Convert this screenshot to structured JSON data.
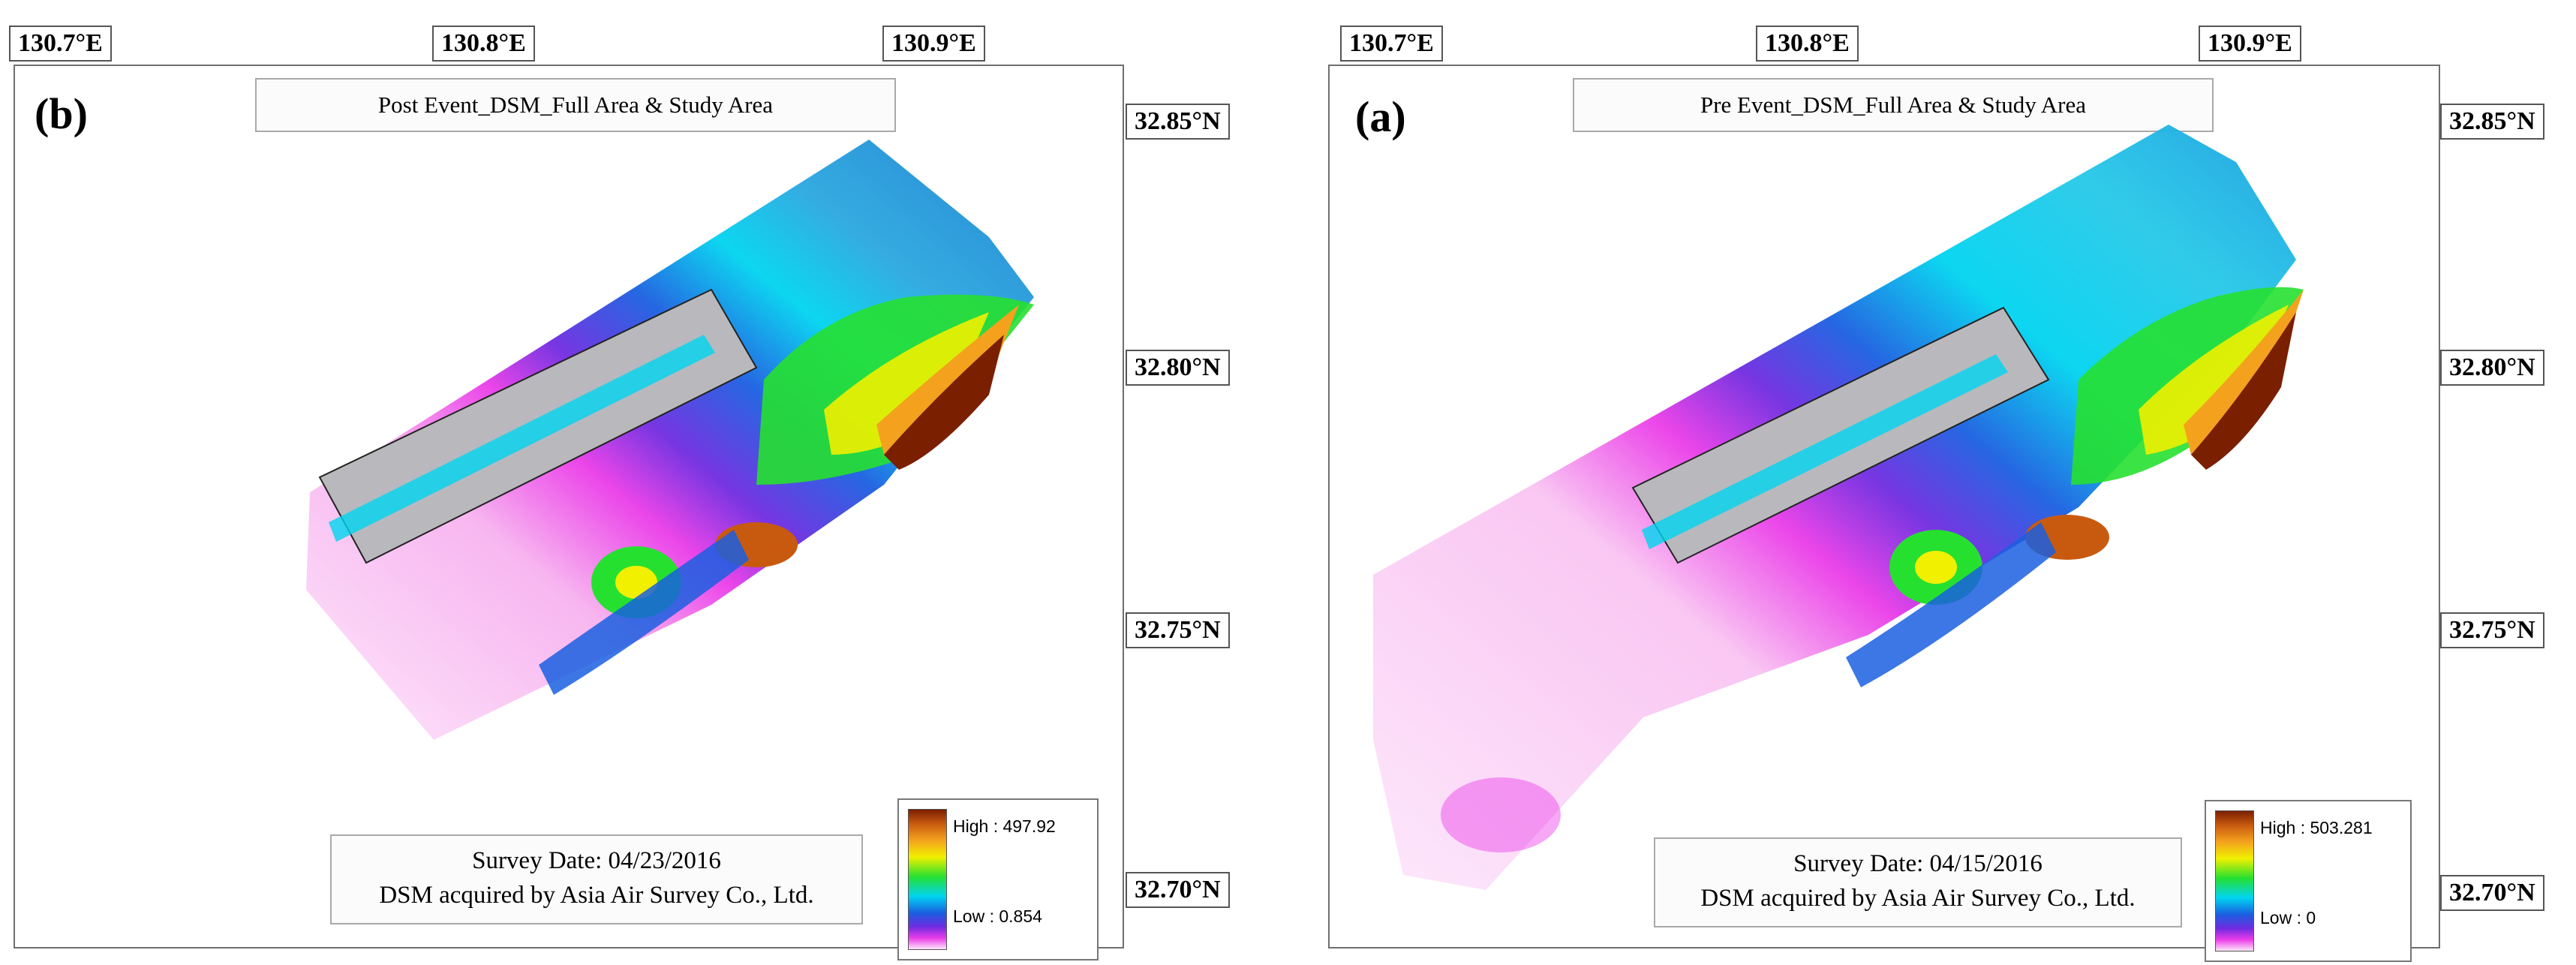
{
  "panel_b": {
    "letter": "(b)",
    "title": "Post Event_DSM_Full Area & Study Area",
    "lon_ticks": [
      "130.7°E",
      "130.8°E",
      "130.9°E"
    ],
    "lat_ticks": [
      "32.85°N",
      "32.80°N",
      "32.75°N",
      "32.70°N"
    ],
    "legend": {
      "high": "High : 497.92",
      "low": "Low : 0.854"
    },
    "info": {
      "line1": "Survey Date: 04/23/2016",
      "line2": "DSM acquired by Asia Air Survey Co., Ltd."
    }
  },
  "panel_a": {
    "letter": "(a)",
    "title": "Pre Event_DSM_Full Area & Study Area",
    "lon_ticks": [
      "130.7°E",
      "130.8°E",
      "130.9°E"
    ],
    "lat_ticks": [
      "32.85°N",
      "32.80°N",
      "32.75°N",
      "32.70°N"
    ],
    "legend": {
      "high": "High : 503.281",
      "low": "Low : 0"
    },
    "info": {
      "line1": "Survey Date: 04/15/2016",
      "line2": "DSM acquired by Asia Air Survey Co., Ltd."
    }
  },
  "colors": {
    "elevation_ramp": [
      "#7a1f00",
      "#c85a10",
      "#f4a21e",
      "#f0f000",
      "#26e030",
      "#00d4f0",
      "#1a5fe0",
      "#6f2be0",
      "#ea3ce8",
      "#fde6fb"
    ],
    "study_area_fill": "#b9b9bd"
  }
}
